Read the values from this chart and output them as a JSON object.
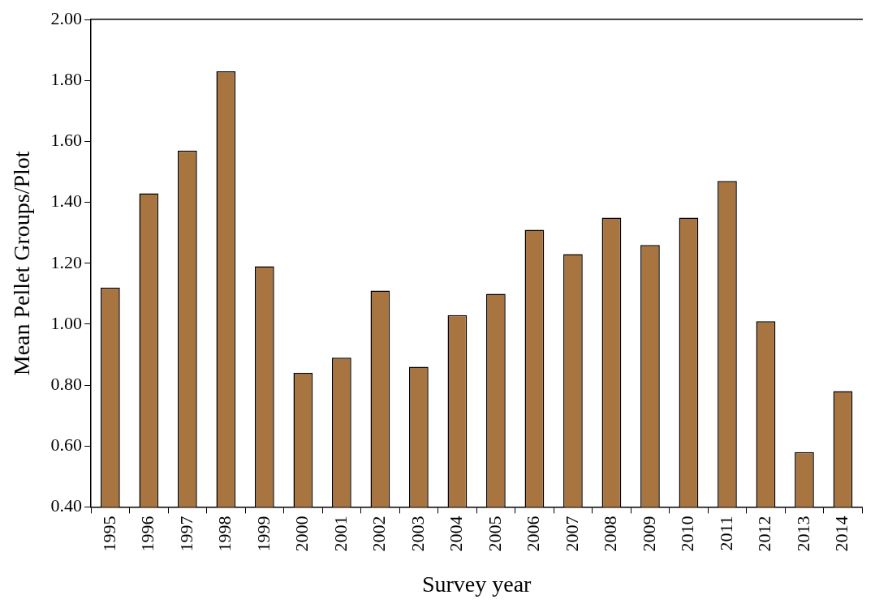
{
  "chart_data": {
    "type": "bar",
    "xlabel": "Survey year",
    "ylabel": "Mean Pellet Groups/Plot",
    "categories": [
      "1995",
      "1996",
      "1997",
      "1998",
      "1999",
      "2000",
      "2001",
      "2002",
      "2003",
      "2004",
      "2005",
      "2006",
      "2007",
      "2008",
      "2009",
      "2010",
      "2011",
      "2012",
      "2013",
      "2014"
    ],
    "values": [
      1.12,
      1.43,
      1.57,
      1.83,
      1.19,
      0.84,
      0.89,
      1.11,
      0.86,
      1.03,
      1.1,
      1.31,
      1.23,
      1.35,
      1.26,
      1.35,
      1.47,
      1.01,
      0.58,
      0.78
    ],
    "color": "#a8743f",
    "ylim": [
      0.4,
      2.0
    ],
    "yticks": [
      {
        "value": 0.4,
        "label": "0.40"
      },
      {
        "value": 0.6,
        "label": "0.60"
      },
      {
        "value": 0.8,
        "label": "0.80"
      },
      {
        "value": 1.0,
        "label": "1.00"
      },
      {
        "value": 1.2,
        "label": "1.20"
      },
      {
        "value": 1.4,
        "label": "1.40"
      },
      {
        "value": 1.6,
        "label": "1.60"
      },
      {
        "value": 1.8,
        "label": "1.80"
      },
      {
        "value": 2.0,
        "label": "2.00"
      }
    ],
    "grid": false,
    "legend": false
  }
}
